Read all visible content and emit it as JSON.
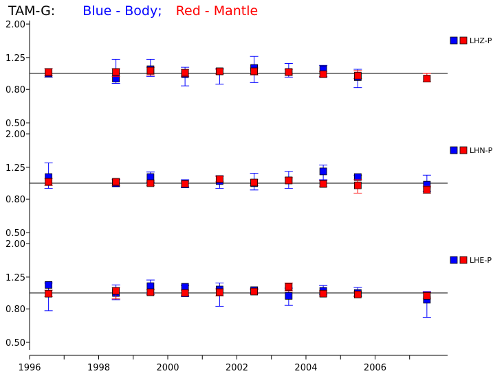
{
  "title": {
    "station": "TAM-G:",
    "blue_label": "Blue - Body;",
    "red_label": "Red - Mantle",
    "blue_color": "#0000ff",
    "red_color": "#ff0000"
  },
  "chart_data": [
    {
      "type": "scatter",
      "panel": "LHZ-P",
      "legend_label": "LHZ-P",
      "ylim": [
        0.45,
        2.1
      ],
      "yscale": "log",
      "yticks": [
        "2.00",
        "1.25",
        "0.80",
        "0.50"
      ],
      "reference_y": 1.0,
      "series": [
        {
          "color": "blue",
          "points": [
            {
              "x": 1996.55,
              "y": 1.0,
              "lo": 0.95,
              "hi": 1.07
            },
            {
              "x": 1998.5,
              "y": 0.93,
              "lo": 0.87,
              "hi": 1.22
            },
            {
              "x": 1999.5,
              "y": 1.06,
              "lo": 0.96,
              "hi": 1.22
            },
            {
              "x": 2000.5,
              "y": 0.99,
              "lo": 0.84,
              "hi": 1.09
            },
            {
              "x": 2001.5,
              "y": 1.03,
              "lo": 0.86,
              "hi": 1.07
            },
            {
              "x": 2002.5,
              "y": 1.08,
              "lo": 0.88,
              "hi": 1.27
            },
            {
              "x": 2003.5,
              "y": 1.02,
              "lo": 0.95,
              "hi": 1.15
            },
            {
              "x": 2004.5,
              "y": 1.06,
              "lo": 0.95,
              "hi": 1.12
            },
            {
              "x": 2005.5,
              "y": 0.95,
              "lo": 0.82,
              "hi": 1.06
            }
          ]
        },
        {
          "color": "red",
          "points": [
            {
              "x": 1996.55,
              "y": 1.02,
              "lo": 0.97,
              "hi": 1.07
            },
            {
              "x": 1998.5,
              "y": 1.02,
              "lo": 0.96,
              "hi": 1.07
            },
            {
              "x": 1999.5,
              "y": 1.04,
              "lo": 0.98,
              "hi": 1.09
            },
            {
              "x": 2000.5,
              "y": 1.01,
              "lo": 0.96,
              "hi": 1.06
            },
            {
              "x": 2001.5,
              "y": 1.03,
              "lo": 0.99,
              "hi": 1.06
            },
            {
              "x": 2002.5,
              "y": 1.03,
              "lo": 0.98,
              "hi": 1.08
            },
            {
              "x": 2003.5,
              "y": 1.02,
              "lo": 0.98,
              "hi": 1.06
            },
            {
              "x": 2004.5,
              "y": 0.99,
              "lo": 0.96,
              "hi": 1.03
            },
            {
              "x": 2005.5,
              "y": 0.97,
              "lo": 0.93,
              "hi": 1.04
            },
            {
              "x": 2007.5,
              "y": 0.93,
              "lo": 0.89,
              "hi": 1.0
            }
          ]
        }
      ]
    },
    {
      "type": "scatter",
      "panel": "LHN-P",
      "legend_label": "LHN-P",
      "ylim": [
        0.45,
        2.1
      ],
      "yscale": "log",
      "yticks": [
        "2.00",
        "1.25",
        "0.80",
        "0.50"
      ],
      "reference_y": 1.0,
      "series": [
        {
          "color": "blue",
          "points": [
            {
              "x": 1996.55,
              "y": 1.09,
              "lo": 0.93,
              "hi": 1.33
            },
            {
              "x": 1998.5,
              "y": 1.0,
              "lo": 0.95,
              "hi": 1.05
            },
            {
              "x": 1999.5,
              "y": 1.09,
              "lo": 1.01,
              "hi": 1.17
            },
            {
              "x": 2000.5,
              "y": 0.99,
              "lo": 0.94,
              "hi": 1.05
            },
            {
              "x": 2001.5,
              "y": 1.03,
              "lo": 0.93,
              "hi": 1.11
            },
            {
              "x": 2002.5,
              "y": 1.0,
              "lo": 0.91,
              "hi": 1.15
            },
            {
              "x": 2003.5,
              "y": 1.04,
              "lo": 0.93,
              "hi": 1.18
            },
            {
              "x": 2004.5,
              "y": 1.18,
              "lo": 1.05,
              "hi": 1.29
            },
            {
              "x": 2005.5,
              "y": 1.09,
              "lo": 1.05,
              "hi": 1.12
            },
            {
              "x": 2007.5,
              "y": 0.98,
              "lo": 0.89,
              "hi": 1.12
            }
          ]
        },
        {
          "color": "red",
          "points": [
            {
              "x": 1996.55,
              "y": 1.02,
              "lo": 0.97,
              "hi": 1.07
            },
            {
              "x": 1998.5,
              "y": 1.02,
              "lo": 0.97,
              "hi": 1.06
            },
            {
              "x": 1999.5,
              "y": 1.0,
              "lo": 0.97,
              "hi": 1.03
            },
            {
              "x": 2000.5,
              "y": 0.99,
              "lo": 0.95,
              "hi": 1.03
            },
            {
              "x": 2001.5,
              "y": 1.06,
              "lo": 1.02,
              "hi": 1.1
            },
            {
              "x": 2002.5,
              "y": 1.01,
              "lo": 0.97,
              "hi": 1.05
            },
            {
              "x": 2003.5,
              "y": 1.04,
              "lo": 1.0,
              "hi": 1.08
            },
            {
              "x": 2004.5,
              "y": 0.99,
              "lo": 0.95,
              "hi": 1.04
            },
            {
              "x": 2005.5,
              "y": 0.97,
              "lo": 0.87,
              "hi": 1.05
            },
            {
              "x": 2007.5,
              "y": 0.91,
              "lo": 0.87,
              "hi": 0.96
            }
          ]
        }
      ]
    },
    {
      "type": "scatter",
      "panel": "LHE-P",
      "legend_label": "LHE-P",
      "ylim": [
        0.45,
        2.1
      ],
      "yscale": "log",
      "yticks": [
        "2.00",
        "1.25",
        "0.80",
        "0.50"
      ],
      "reference_y": 1.0,
      "series": [
        {
          "color": "blue",
          "points": [
            {
              "x": 1996.55,
              "y": 1.12,
              "lo": 0.78,
              "hi": 1.15
            },
            {
              "x": 1998.5,
              "y": 1.0,
              "lo": 0.91,
              "hi": 1.12
            },
            {
              "x": 1999.5,
              "y": 1.1,
              "lo": 1.0,
              "hi": 1.2
            },
            {
              "x": 2000.5,
              "y": 1.09,
              "lo": 0.95,
              "hi": 1.11
            },
            {
              "x": 2001.5,
              "y": 1.05,
              "lo": 0.83,
              "hi": 1.15
            },
            {
              "x": 2002.5,
              "y": 1.04,
              "lo": 1.0,
              "hi": 1.06
            },
            {
              "x": 2003.5,
              "y": 0.96,
              "lo": 0.84,
              "hi": 1.07
            },
            {
              "x": 2004.5,
              "y": 1.03,
              "lo": 0.98,
              "hi": 1.11
            },
            {
              "x": 2005.5,
              "y": 1.0,
              "lo": 0.96,
              "hi": 1.08
            },
            {
              "x": 2007.5,
              "y": 0.91,
              "lo": 0.71,
              "hi": 1.02
            }
          ]
        },
        {
          "color": "red",
          "points": [
            {
              "x": 1996.55,
              "y": 0.99,
              "lo": 0.95,
              "hi": 1.04
            },
            {
              "x": 1998.5,
              "y": 1.03,
              "lo": 0.92,
              "hi": 1.08
            },
            {
              "x": 1999.5,
              "y": 1.01,
              "lo": 0.98,
              "hi": 1.05
            },
            {
              "x": 2000.5,
              "y": 1.0,
              "lo": 0.97,
              "hi": 1.04
            },
            {
              "x": 2001.5,
              "y": 1.01,
              "lo": 0.96,
              "hi": 1.06
            },
            {
              "x": 2002.5,
              "y": 1.02,
              "lo": 0.99,
              "hi": 1.05
            },
            {
              "x": 2003.5,
              "y": 1.09,
              "lo": 1.03,
              "hi": 1.15
            },
            {
              "x": 2004.5,
              "y": 0.99,
              "lo": 0.96,
              "hi": 1.03
            },
            {
              "x": 2005.5,
              "y": 0.98,
              "lo": 0.95,
              "hi": 1.02
            },
            {
              "x": 2007.5,
              "y": 0.96,
              "lo": 0.93,
              "hi": 1.01
            }
          ]
        }
      ]
    }
  ],
  "x_axis": {
    "xlim": [
      1996.0,
      2008.1
    ],
    "major_ticks": [
      1996,
      1998,
      2000,
      2002,
      2004,
      2006
    ],
    "minor_ticks": [
      1997,
      1999,
      2001,
      2003,
      2005,
      2007
    ],
    "tick_labels": [
      "1996",
      "1998",
      "2000",
      "2002",
      "2004",
      "2006"
    ]
  }
}
